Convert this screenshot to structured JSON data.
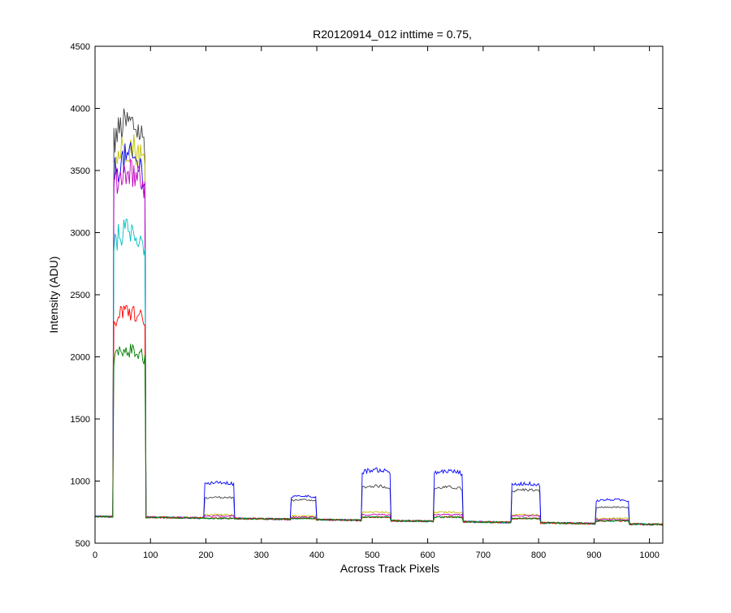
{
  "chart_data": {
    "type": "line",
    "title": "R20120914_012 inttime = 0.75,",
    "xlabel": "Across Track Pixels",
    "ylabel": "Intensity (ADU)",
    "xlim": [
      0,
      1024
    ],
    "ylim": [
      500,
      4500
    ],
    "xticks": [
      0,
      100,
      200,
      300,
      400,
      500,
      600,
      700,
      800,
      900,
      1000
    ],
    "yticks": [
      500,
      1000,
      1500,
      2000,
      2500,
      3000,
      3500,
      4000,
      4500
    ],
    "grid": false,
    "legend": "none",
    "plateau_x_ranges": [
      [
        30,
        92
      ],
      [
        195,
        253
      ],
      [
        350,
        400
      ],
      [
        478,
        535
      ],
      [
        608,
        665
      ],
      [
        748,
        805
      ],
      [
        900,
        965
      ]
    ],
    "baseline_start": 715,
    "baseline_end": 650,
    "series": [
      {
        "color": "#404040",
        "plateaus": [
          3880,
          870,
          850,
          960,
          950,
          930,
          790
        ]
      },
      {
        "color": "#c0c000",
        "plateaus": [
          3700,
          730,
          720,
          750,
          750,
          730,
          700
        ]
      },
      {
        "color": "#0000ff",
        "plateaus": [
          3600,
          990,
          880,
          1090,
          1080,
          980,
          850
        ]
      },
      {
        "color": "#bf00bf",
        "plateaus": [
          3500,
          720,
          710,
          730,
          730,
          720,
          690
        ]
      },
      {
        "color": "#00bfbf",
        "plateaus": [
          3020,
          700,
          700,
          710,
          710,
          700,
          680
        ]
      },
      {
        "color": "#ff0000",
        "plateaus": [
          2360,
          700,
          700,
          710,
          710,
          700,
          680
        ]
      },
      {
        "color": "#008000",
        "plateaus": [
          2050,
          700,
          700,
          710,
          710,
          700,
          680
        ]
      }
    ]
  }
}
